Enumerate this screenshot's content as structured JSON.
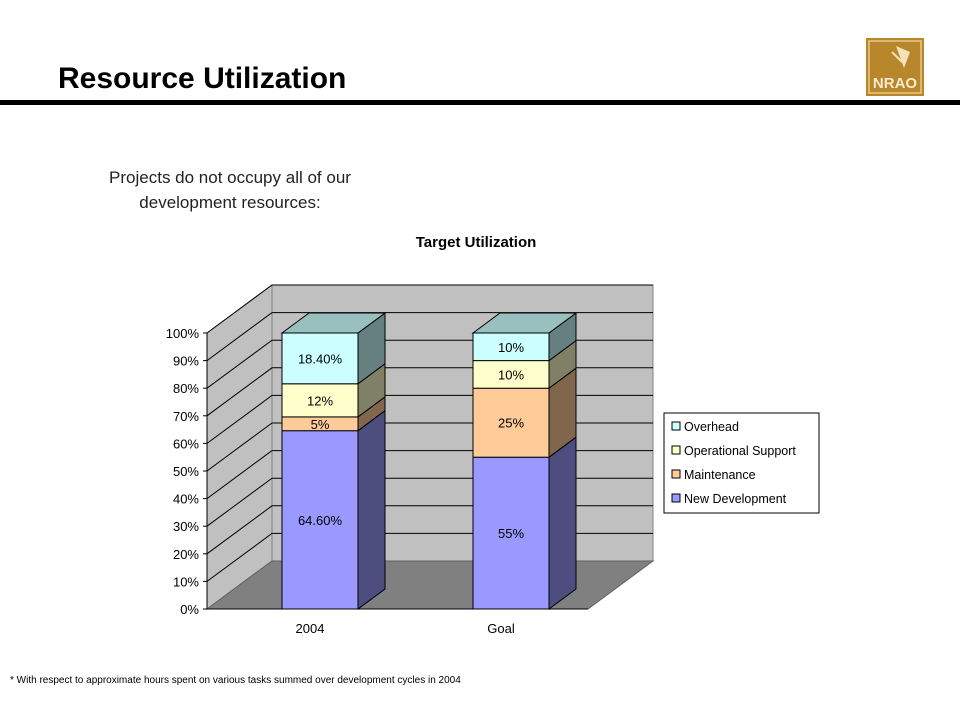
{
  "header": {
    "title": "Resource Utilization"
  },
  "logo": {
    "text": "NRAO",
    "color": "#b8862b"
  },
  "intro": {
    "line1": "Projects do not occupy all of our",
    "line2": "development resources:"
  },
  "footnote": "* With respect to approximate hours spent on various tasks summed over development cycles in 2004",
  "chart_data": {
    "type": "bar",
    "stacked": true,
    "three_d": true,
    "title": "Target Utilization",
    "categories": [
      "2004",
      "Goal"
    ],
    "ylim": [
      0,
      100
    ],
    "yticks": [
      "0%",
      "10%",
      "20%",
      "30%",
      "40%",
      "50%",
      "60%",
      "70%",
      "80%",
      "90%",
      "100%"
    ],
    "grid": true,
    "legend": "right",
    "series": [
      {
        "name": "New Development",
        "values": [
          64.6,
          55
        ],
        "labels": [
          "64.60%",
          "55%"
        ],
        "color": "#9999ff",
        "side": "#4d4d80",
        "top": "#7373bf"
      },
      {
        "name": "Maintenance",
        "values": [
          5,
          25
        ],
        "labels": [
          "5%",
          "25%"
        ],
        "color": "#ffcc99",
        "side": "#80664d",
        "top": "#bf9973"
      },
      {
        "name": "Operational Support",
        "values": [
          12,
          10
        ],
        "labels": [
          "12%",
          "10%"
        ],
        "color": "#ffffcc",
        "side": "#808066",
        "top": "#bfbf99"
      },
      {
        "name": "Overhead",
        "values": [
          18.4,
          10
        ],
        "labels": [
          "18.40%",
          "10%"
        ],
        "color": "#ccffff",
        "side": "#668080",
        "top": "#99bfbf"
      }
    ],
    "wall_color": "#c0c0c0",
    "floor_color": "#808080"
  }
}
